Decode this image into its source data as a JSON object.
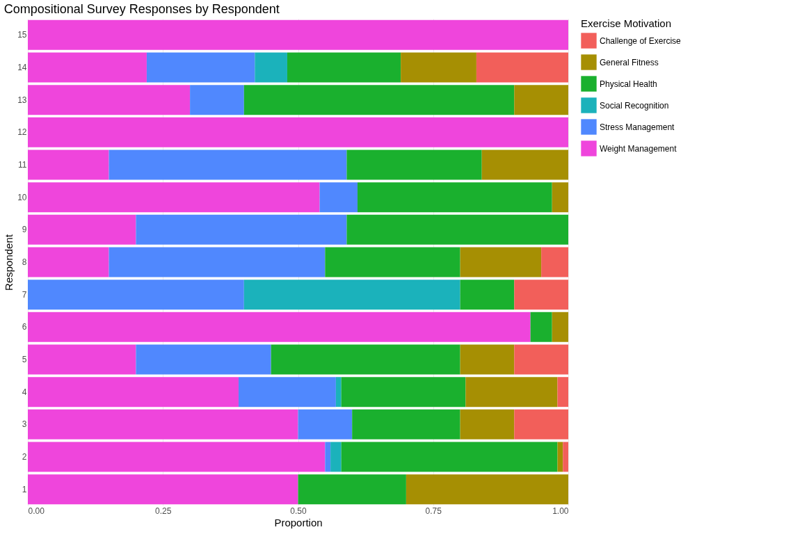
{
  "chart_data": {
    "type": "bar",
    "orientation": "horizontal",
    "stacked": true,
    "title": "Compositional Survey Responses by Respondent",
    "xlabel": "Proportion",
    "ylabel": "Respondent",
    "legend_title": "Exercise Motivation",
    "categories": [
      "15",
      "14",
      "13",
      "12",
      "11",
      "10",
      "9",
      "8",
      "7",
      "6",
      "5",
      "4",
      "3",
      "2",
      "1"
    ],
    "series": [
      {
        "name": "Weight Management",
        "color": "#ef45dc",
        "values": [
          1,
          0.22,
          0.3,
          1,
          0.15,
          0.54,
          0.2,
          0.15,
          null,
          0.93,
          0.2,
          0.39,
          0.5,
          0.55,
          0.5
        ]
      },
      {
        "name": "Stress Management",
        "color": "#5088fe",
        "values": [
          null,
          0.2,
          0.1,
          null,
          0.44,
          0.07,
          0.39,
          0.4,
          0.4,
          null,
          0.25,
          0.18,
          0.1,
          0.01,
          null
        ]
      },
      {
        "name": "Social Recognition",
        "color": "#1bb2bb",
        "values": [
          null,
          0.06,
          null,
          null,
          null,
          null,
          null,
          null,
          0.4,
          null,
          null,
          0.01,
          null,
          0.02,
          null
        ]
      },
      {
        "name": "Physical Health",
        "color": "#1ab02e",
        "values": [
          null,
          0.21,
          0.5,
          null,
          0.25,
          0.36,
          0.41,
          0.25,
          0.1,
          0.04,
          0.35,
          0.23,
          0.2,
          0.4,
          0.2
        ]
      },
      {
        "name": "General Fitness",
        "color": "#a68f03",
        "values": [
          null,
          0.14,
          0.1,
          null,
          0.16,
          0.03,
          null,
          0.15,
          null,
          0.03,
          0.1,
          0.17,
          0.1,
          0.01,
          0.3
        ]
      },
      {
        "name": "Challenge of Exercise",
        "color": "#f25f5a",
        "values": [
          null,
          0.17,
          null,
          null,
          null,
          null,
          null,
          0.05,
          0.1,
          null,
          0.1,
          0.02,
          0.1,
          0.01,
          null
        ]
      }
    ],
    "xlim": [
      0,
      1
    ],
    "xticks": [
      {
        "value": 0,
        "label": "0.00"
      },
      {
        "value": 0.25,
        "label": "0.25"
      },
      {
        "value": 0.5,
        "label": "0.50"
      },
      {
        "value": 0.75,
        "label": "0.75"
      },
      {
        "value": 1,
        "label": "1.00"
      }
    ],
    "grid": true,
    "legend": "right"
  }
}
